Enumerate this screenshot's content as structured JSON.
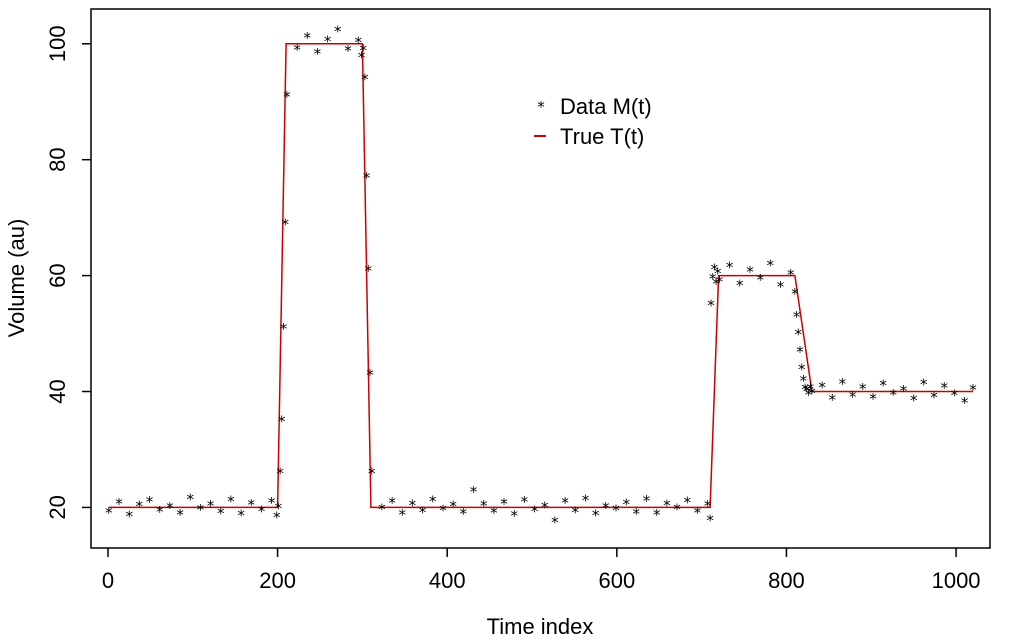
{
  "chart_data": {
    "type": "scatter",
    "title": "",
    "xlabel": "Time index",
    "ylabel": "Volume (au)",
    "xlim": [
      -20,
      1040
    ],
    "ylim": [
      13,
      106
    ],
    "xticks": [
      0,
      200,
      400,
      600,
      800,
      1000
    ],
    "yticks": [
      20,
      40,
      60,
      80,
      100
    ],
    "grid": false,
    "legend": {
      "placement": "top-center",
      "entries": [
        {
          "label": "Data M(t)",
          "marker": "*",
          "color": "#000000"
        },
        {
          "label": "True T(t)",
          "marker": "line",
          "color": "#cc0000"
        }
      ]
    },
    "series": [
      {
        "name": "True T(t)",
        "style": "line",
        "color": "#cc0000",
        "x": [
          1,
          200,
          210,
          300,
          310,
          710,
          720,
          810,
          830,
          1020
        ],
        "y": [
          20,
          20,
          100,
          100,
          20,
          20,
          60,
          60,
          40,
          40
        ]
      },
      {
        "name": "Data M(t)",
        "style": "points",
        "marker": "*",
        "color": "#000000",
        "x": [
          1,
          13,
          25,
          37,
          49,
          61,
          73,
          85,
          97,
          109,
          121,
          133,
          145,
          157,
          169,
          181,
          193,
          199,
          201,
          203,
          205,
          207,
          209,
          211,
          223,
          235,
          247,
          259,
          271,
          283,
          295,
          299,
          301,
          303,
          305,
          307,
          309,
          311,
          323,
          335,
          347,
          359,
          371,
          383,
          395,
          407,
          419,
          431,
          443,
          455,
          467,
          479,
          491,
          503,
          515,
          527,
          539,
          551,
          563,
          575,
          587,
          599,
          611,
          623,
          635,
          647,
          659,
          671,
          683,
          695,
          707,
          710,
          711,
          713,
          715,
          717,
          719,
          721,
          733,
          745,
          757,
          769,
          781,
          793,
          805,
          810,
          812,
          814,
          816,
          818,
          820,
          822,
          824,
          826,
          828,
          830,
          842,
          854,
          866,
          878,
          890,
          902,
          914,
          926,
          938,
          950,
          962,
          974,
          986,
          998,
          1010,
          1020
        ],
        "y": [
          19.2,
          20.8,
          18.6,
          20.3,
          21.1,
          19.4,
          20.1,
          18.9,
          21.5,
          19.7,
          20.4,
          19.1,
          21.2,
          18.8,
          20.6,
          19.5,
          20.9,
          18.4,
          20,
          26,
          35,
          51,
          69,
          91,
          99.1,
          101.2,
          98.4,
          100.6,
          102.3,
          98.9,
          100.4,
          97.8,
          99,
          94,
          77,
          61,
          43,
          26,
          19.8,
          20.9,
          18.9,
          20.5,
          19.3,
          21.2,
          19.6,
          20.3,
          19,
          22.8,
          20.4,
          19.2,
          20.8,
          18.7,
          21.1,
          19.5,
          20.2,
          17.6,
          20.9,
          19.3,
          21.4,
          18.8,
          20.1,
          19.6,
          20.7,
          19,
          21.3,
          18.9,
          20.5,
          19.8,
          21,
          19.2,
          20.4,
          17.9,
          55,
          59.6,
          61.2,
          58.7,
          60.5,
          59.1,
          61.6,
          58.5,
          60.8,
          59.4,
          61.9,
          58.2,
          60.3,
          57,
          53,
          50,
          47,
          44,
          42,
          40.5,
          40.2,
          39.6,
          40.6,
          39.8,
          40.9,
          38.7,
          41.5,
          39.2,
          40.6,
          38.9,
          41.2,
          39.6,
          40.3,
          38.6,
          41.4,
          39.1,
          40.8,
          39.5,
          38.2,
          40.4
        ]
      }
    ]
  }
}
